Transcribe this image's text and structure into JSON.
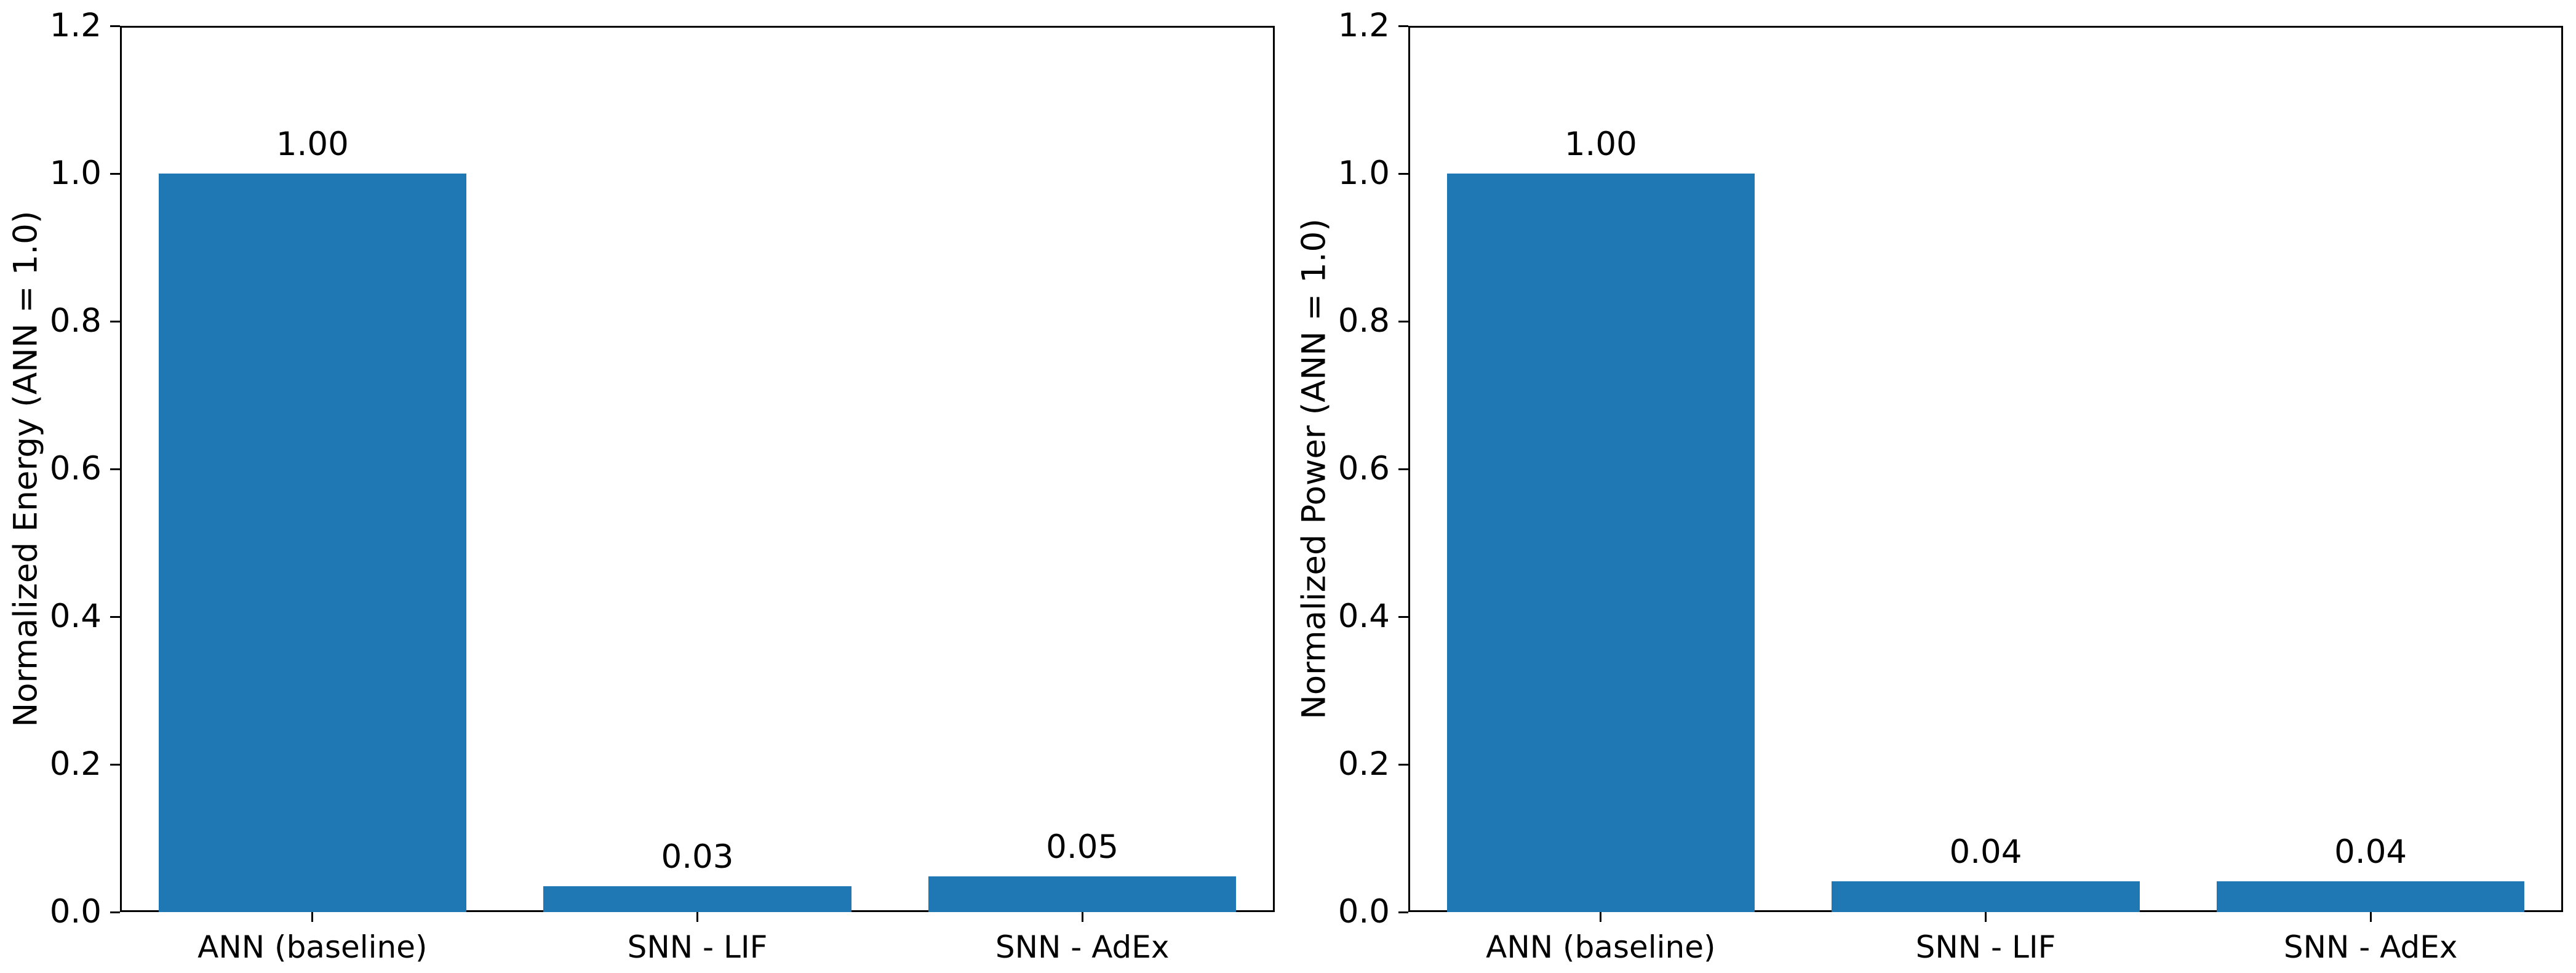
{
  "figure": {
    "background_color": "#ffffff",
    "axis_color": "#000000",
    "text_color": "#000000"
  },
  "chart_data": [
    {
      "type": "bar",
      "panel": "left",
      "title": "",
      "xlabel": "",
      "ylabel": "Normalized Energy (ANN = 1.0)",
      "categories": [
        "ANN (baseline)",
        "SNN - LIF",
        "SNN - AdEx"
      ],
      "values": [
        1.0,
        0.035,
        0.048
      ],
      "bar_labels": [
        "1.00",
        "0.03",
        "0.05"
      ],
      "bar_color": "#1f77b4",
      "ylim": [
        0.0,
        1.2
      ],
      "yticks": [
        0.0,
        0.2,
        0.4,
        0.6,
        0.8,
        1.0,
        1.2
      ],
      "ytick_labels": [
        "0.0",
        "0.2",
        "0.4",
        "0.6",
        "0.8",
        "1.0",
        "1.2"
      ],
      "grid": false,
      "legend": "none"
    },
    {
      "type": "bar",
      "panel": "right",
      "title": "",
      "xlabel": "",
      "ylabel": "Normalized Power (ANN = 1.0)",
      "categories": [
        "ANN (baseline)",
        "SNN - LIF",
        "SNN - AdEx"
      ],
      "values": [
        1.0,
        0.042,
        0.042
      ],
      "bar_labels": [
        "1.00",
        "0.04",
        "0.04"
      ],
      "bar_color": "#1f77b4",
      "ylim": [
        0.0,
        1.2
      ],
      "yticks": [
        0.0,
        0.2,
        0.4,
        0.6,
        0.8,
        1.0,
        1.2
      ],
      "ytick_labels": [
        "0.0",
        "0.2",
        "0.4",
        "0.6",
        "0.8",
        "1.0",
        "1.2"
      ],
      "grid": false,
      "legend": "none"
    }
  ]
}
